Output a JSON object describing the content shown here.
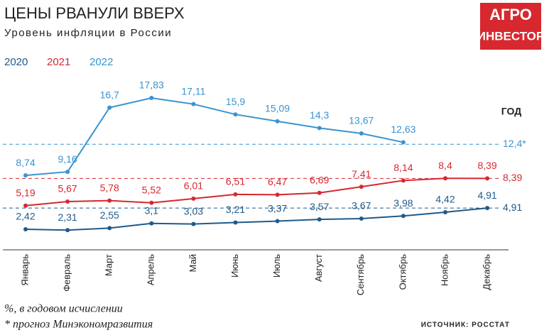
{
  "chart_data": {
    "type": "line",
    "title": "ЦЕНЫ РВАНУЛИ ВВЕРХ",
    "subtitle": "Уровень инфляции в России",
    "categories": [
      "Январь",
      "Февраль",
      "Март",
      "Апрель",
      "Май",
      "Июнь",
      "Июль",
      "Август",
      "Сентябрь",
      "Октябрь",
      "Ноябрь",
      "Декабрь"
    ],
    "series": [
      {
        "name": "2020",
        "color": "#1f5a8a",
        "values": [
          2.42,
          2.31,
          2.55,
          3.1,
          3.03,
          3.21,
          3.37,
          3.57,
          3.67,
          3.98,
          4.42,
          4.91
        ],
        "value_labels": [
          "2,42",
          "2,31",
          "2,55",
          "3,1",
          "3,03",
          "3,21",
          "3,37",
          "3,57",
          "3,67",
          "3,98",
          "4,42",
          "4,91"
        ],
        "annual": {
          "value": 4.91,
          "label": "4,91"
        }
      },
      {
        "name": "2021",
        "color": "#d7282f",
        "values": [
          5.19,
          5.67,
          5.78,
          5.52,
          6.01,
          6.51,
          6.47,
          6.69,
          7.41,
          8.14,
          8.4,
          8.39
        ],
        "value_labels": [
          "5,19",
          "5,67",
          "5,78",
          "5,52",
          "6,01",
          "6,51",
          "6,47",
          "6,69",
          "7,41",
          "8,14",
          "8,4",
          "8,39"
        ],
        "annual": {
          "value": 8.39,
          "label": "8,39"
        }
      },
      {
        "name": "2022",
        "color": "#3a93cf",
        "values": [
          8.74,
          9.16,
          16.7,
          17.83,
          17.11,
          15.9,
          15.09,
          14.3,
          13.67,
          12.63,
          null,
          null
        ],
        "value_labels": [
          "8,74",
          "9,16",
          "16,7",
          "17,83",
          "17,11",
          "15,9",
          "15,09",
          "14,3",
          "13,67",
          "12,63",
          null,
          null
        ],
        "annual": {
          "value": 12.4,
          "label": "12,4*"
        }
      }
    ],
    "annual_title": "ГОД",
    "ylim": [
      0,
      20
    ],
    "notes": [
      "%, в годовом исчислении",
      "* прогноз Минэкономразвития"
    ],
    "source": "ИСТОЧНИК: РОССТАТ",
    "logo": [
      "АГРО",
      "ИНВЕСТОР"
    ]
  }
}
